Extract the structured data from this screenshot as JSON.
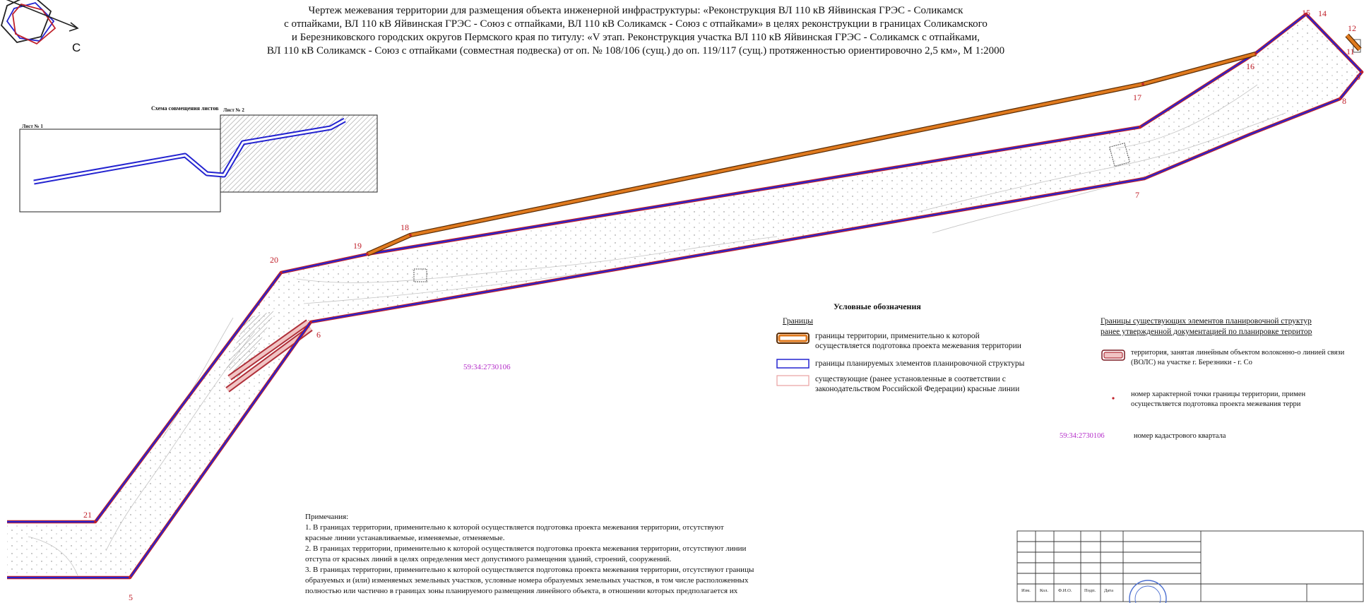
{
  "title_lines": [
    "Чертеж межевания территории для размещения объекта инженерной инфраструктуры: «Реконструкция ВЛ 110 кВ Яйвинская ГРЭС - Соликамск",
    "с отпайками, ВЛ 110 кВ Яйвинская ГРЭС - Союз с отпайками, ВЛ 110 кВ Соликамск - Союз с отпайками» в целях реконструкции в границах Соликамского",
    "и Березниковского городских округов Пермского края по титулу: «V этап. Реконструкция участка ВЛ 110 кВ Яйвинская ГРЭС - Соликамск с отпайками,",
    "ВЛ 110 кВ Соликамск - Союз с отпайками (совместная подвеска) от оп. № 108/106 (сущ.) до оп. 119/117 (сущ.) протяженностью ориентировочно 2,5 км», М 1:2000"
  ],
  "compass_label": "С",
  "scheme": {
    "title": "Схема совмещения листов",
    "sheet1": "Лист № 1",
    "sheet2": "Лист № 2"
  },
  "points": {
    "p5": "5",
    "p6": "6",
    "p7": "7",
    "p8": "8",
    "p9": "9",
    "p11": "11",
    "p12": "12",
    "p14": "14",
    "p15": "15",
    "p16": "16",
    "p17": "17",
    "p18": "18",
    "p19": "19",
    "p20": "20",
    "p21": "21"
  },
  "cadastral_quarter": "59:34:2730106",
  "legend": {
    "heading": "Условные обозначения",
    "borders_head": "Границы",
    "item1": "границы территории, применительно к которой осуществляется подготовка проекта межевания территории",
    "item2": "границы планируемых элементов планировочной структуры",
    "item3": "существующие (ранее установленные в соответствии с законодательством Российской Федерации) красные линии",
    "existing_head_1": "Границы существующих элементов планировочной структур",
    "existing_head_2": "ранее утвержденной документацией по планировке территор",
    "item4": "территория, занятая линейным объектом волоконно-о линией связи (ВОЛС) на участке г. Березники - г. Со",
    "item5": "номер характерной точки границы территории, примен осуществляется подготовка проекта межевания терри",
    "item6_code": "59:34:2730106",
    "item6": "номер кадастрового квартала"
  },
  "notes": {
    "heading": "Примечания:",
    "lines": [
      "1. В границах территории, применительно к которой осуществляется подготовка проекта межевания территории, отсутствуют",
      "красные линии устанавливаемые, изменяемые, отменяемые.",
      "2. В границах территории, применительно к которой осуществляется подготовка проекта межевания территории, отсутствуют линии",
      "отступа от красных линий в целях определения мест допустимого размещения зданий, строений, сооружений.",
      "3. В границах территории, применительно к которой осуществляется подготовка проекта межевания территории, отсутствуют границы",
      "образуемых и (или) изменяемых земельных участков, условные номера образуемых земельных участков, в том числе расположенных",
      "полностью или частично в границах зоны планируемого размещения линейного объекта, в отношении которых предполагается их"
    ]
  },
  "stamp": {
    "headers": [
      "Изм.",
      "Кол.",
      "Ф.И.О.",
      "Подп.",
      "Дата"
    ]
  },
  "colors": {
    "project_border": "#e07a1e",
    "planning_border": "#2424d0",
    "red_line": "#c0202a",
    "cadastral": "#b42cc9"
  }
}
